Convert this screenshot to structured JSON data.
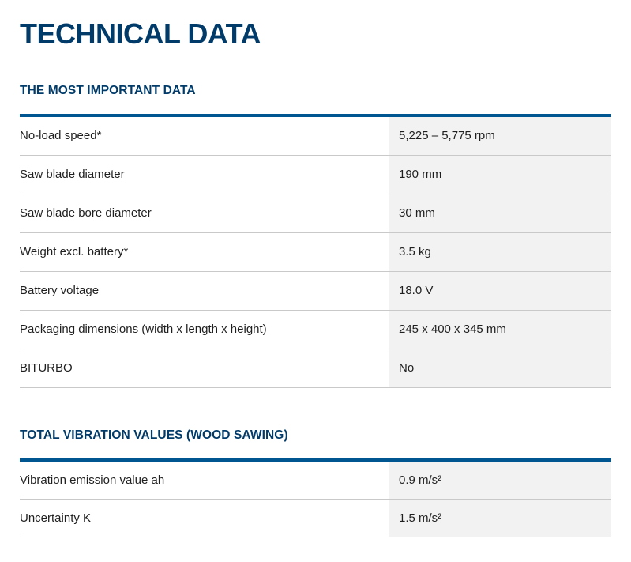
{
  "page": {
    "title": "TECHNICAL DATA"
  },
  "colors": {
    "heading_navy": "#003b6a",
    "table_top_border_blue": "#005691",
    "row_separator": "#c9c9c9",
    "value_cell_background": "#f2f2f2",
    "body_text": "#1f1f1f",
    "page_background": "#ffffff"
  },
  "sections": [
    {
      "heading": "THE MOST IMPORTANT DATA",
      "rows": [
        {
          "label": "No-load speed*",
          "value": "5,225 – 5,775 rpm"
        },
        {
          "label": "Saw blade diameter",
          "value": "190 mm"
        },
        {
          "label": "Saw blade bore diameter",
          "value": "30 mm"
        },
        {
          "label": "Weight excl. battery*",
          "value": "3.5 kg"
        },
        {
          "label": "Battery voltage",
          "value": "18.0 V"
        },
        {
          "label": "Packaging dimensions (width x length x height)",
          "value": "245 x 400 x 345 mm"
        },
        {
          "label": "BITURBO",
          "value": "No"
        }
      ]
    },
    {
      "heading": "TOTAL VIBRATION VALUES (WOOD SAWING)",
      "rows": [
        {
          "label": "Vibration emission value ah",
          "value": "0.9 m/s²"
        },
        {
          "label": "Uncertainty K",
          "value": "1.5 m/s²"
        }
      ]
    }
  ]
}
